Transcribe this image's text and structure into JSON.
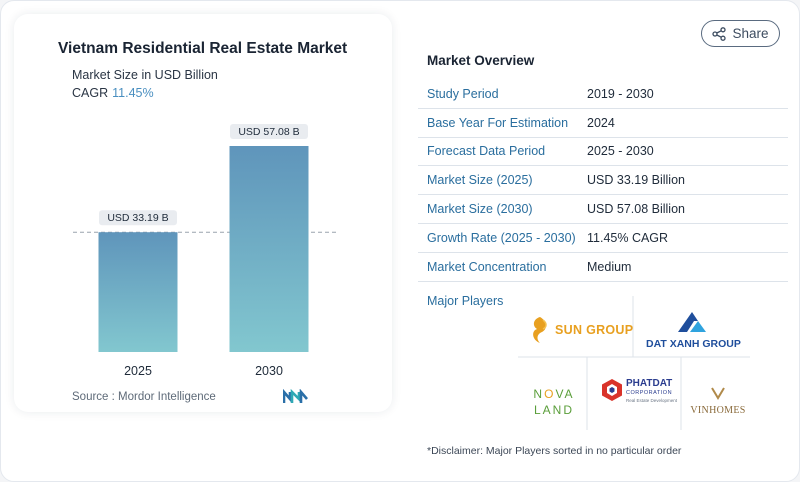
{
  "chart": {
    "title": "Vietnam Residential Real Estate Market",
    "subtitle": "Market Size in USD Billion",
    "cagr_label": "CAGR",
    "cagr_value": "11.45%",
    "source": "Source :  Mordor Intelligence"
  },
  "chart_data": {
    "type": "bar",
    "categories": [
      "2025",
      "2030"
    ],
    "values": [
      33.19,
      57.08
    ],
    "data_labels": [
      "USD 33.19 B",
      "USD 57.08 B"
    ],
    "title": "Vietnam Residential Real Estate Market",
    "subtitle": "Market Size in USD Billion",
    "xlabel": "",
    "ylabel": "",
    "ylim": [
      0,
      57.08
    ],
    "grid": false,
    "reference_line": "dashed line at 2025 value",
    "colors": {
      "bar_top": "#5f95bb",
      "bar_bottom": "#82c7cf",
      "label_bg": "#e9ecf0",
      "dash": "#9aa3ad"
    }
  },
  "share": {
    "label": "Share",
    "icon": "share-icon"
  },
  "overview": {
    "title": "Market Overview",
    "rows": [
      {
        "label": "Study Period",
        "value": "2019 - 2030"
      },
      {
        "label": "Base Year For Estimation",
        "value": "2024"
      },
      {
        "label": "Forecast Data Period",
        "value": "2025 - 2030"
      },
      {
        "label": "Market Size (2025)",
        "value": "USD 33.19 Billion"
      },
      {
        "label": "Market Size (2030)",
        "value": "USD 57.08 Billion"
      },
      {
        "label": "Growth Rate (2025 - 2030)",
        "value": "11.45% CAGR"
      },
      {
        "label": "Market Concentration",
        "value": "Medium"
      }
    ]
  },
  "players": {
    "label": "Major Players",
    "logos": [
      {
        "name": "sun-group",
        "text": "SUN GROUP"
      },
      {
        "name": "dat-xanh-group",
        "text": "DAT XANH GROUP"
      },
      {
        "name": "nova-land",
        "text_top": "N",
        "text_accent": "O",
        "text_end": "VA",
        "text_bottom": "LAND"
      },
      {
        "name": "phat-dat",
        "text": "PHATDAT",
        "subtext": "CORPORATION",
        "tagline": "Real Estate Development"
      },
      {
        "name": "vinhomes",
        "text": "VINHOMES"
      }
    ]
  },
  "disclaimer": "*Disclaimer: Major Players sorted in no particular order",
  "colors": {
    "accent_blue": "#2a6e9e",
    "cagr": "#4a8fc0",
    "sun_orange": "#e8a020",
    "datxanh_blue": "#1f4e9c",
    "novaland_green": "#5a9e3a",
    "phatdat_red": "#d9332a",
    "vinhomes_gold": "#b08a4a"
  }
}
